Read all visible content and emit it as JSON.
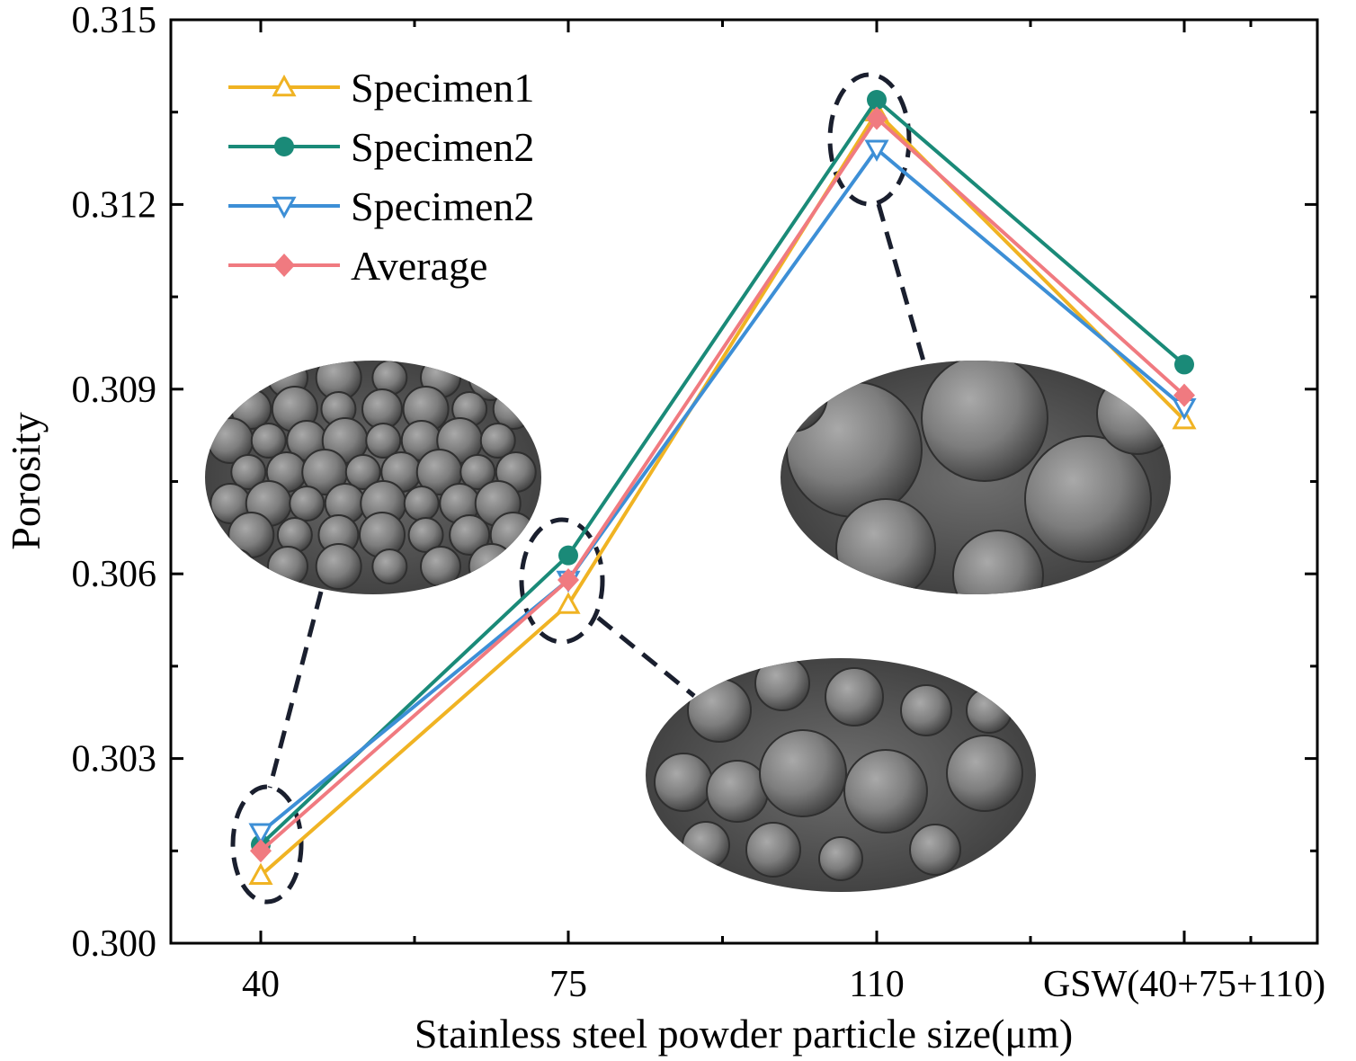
{
  "chart_data": {
    "type": "line",
    "xlabel": "Stainless steel powder particle size(μm)",
    "ylabel": "Porosity",
    "categories": [
      "40",
      "75",
      "110",
      "GSW(40+75+110)"
    ],
    "ylim": [
      0.3,
      0.315
    ],
    "yticks": [
      "0.300",
      "0.303",
      "0.306",
      "0.309",
      "0.312",
      "0.315"
    ],
    "grid": false,
    "legend_position": "top-left",
    "series": [
      {
        "name": "Specimen1",
        "values": [
          0.3011,
          0.3055,
          0.3135,
          0.3085
        ],
        "color": "#f0b323",
        "marker": "triangle-up-open"
      },
      {
        "name": "Specimen2",
        "values": [
          0.3016,
          0.3063,
          0.3137,
          0.3094
        ],
        "color": "#1a8a78",
        "marker": "circle"
      },
      {
        "name": "Specimen2",
        "values": [
          0.3018,
          0.3059,
          0.3129,
          0.3087
        ],
        "color": "#3d8fd6",
        "marker": "triangle-down-open"
      },
      {
        "name": "Average",
        "values": [
          0.3015,
          0.3059,
          0.3134,
          0.3089
        ],
        "color": "#f07a80",
        "marker": "diamond"
      }
    ],
    "insets": [
      {
        "name": "sem-image-40",
        "category_index": 0,
        "description_icon": "sem-powder-micrograph-icon"
      },
      {
        "name": "sem-image-75",
        "category_index": 1,
        "description_icon": "sem-powder-micrograph-icon"
      },
      {
        "name": "sem-image-110",
        "category_index": 2,
        "description_icon": "sem-powder-micrograph-icon"
      }
    ]
  }
}
